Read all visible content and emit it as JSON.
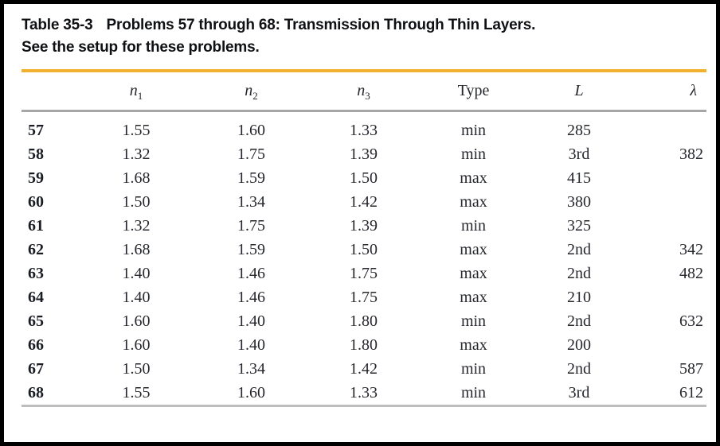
{
  "page": {
    "title_label": "Table 35-3",
    "title_text": "Problems 57 through 68: Transmission Through Thin Layers.",
    "subtitle": "See the setup for these problems."
  },
  "table": {
    "headers": [
      {
        "key": "problem",
        "base": "",
        "sub": "",
        "italic": false
      },
      {
        "key": "n1",
        "base": "n",
        "sub": "1",
        "italic": true
      },
      {
        "key": "n2",
        "base": "n",
        "sub": "2",
        "italic": true
      },
      {
        "key": "n3",
        "base": "n",
        "sub": "3",
        "italic": true
      },
      {
        "key": "type",
        "base": "Type",
        "sub": "",
        "italic": false
      },
      {
        "key": "L",
        "base": "L",
        "sub": "",
        "italic": true
      },
      {
        "key": "lambda",
        "base": "λ",
        "sub": "",
        "italic": true
      }
    ],
    "rows": [
      {
        "cells": [
          "57",
          "1.55",
          "1.60",
          "1.33",
          "min",
          "285",
          ""
        ]
      },
      {
        "cells": [
          "58",
          "1.32",
          "1.75",
          "1.39",
          "min",
          "3rd",
          "382"
        ]
      },
      {
        "cells": [
          "59",
          "1.68",
          "1.59",
          "1.50",
          "max",
          "415",
          ""
        ]
      },
      {
        "cells": [
          "60",
          "1.50",
          "1.34",
          "1.42",
          "max",
          "380",
          ""
        ]
      },
      {
        "cells": [
          "61",
          "1.32",
          "1.75",
          "1.39",
          "min",
          "325",
          ""
        ]
      },
      {
        "cells": [
          "62",
          "1.68",
          "1.59",
          "1.50",
          "max",
          "2nd",
          "342"
        ]
      },
      {
        "cells": [
          "63",
          "1.40",
          "1.46",
          "1.75",
          "max",
          "2nd",
          "482"
        ]
      },
      {
        "cells": [
          "64",
          "1.40",
          "1.46",
          "1.75",
          "max",
          "210",
          ""
        ]
      },
      {
        "cells": [
          "65",
          "1.60",
          "1.40",
          "1.80",
          "min",
          "2nd",
          "632"
        ]
      },
      {
        "cells": [
          "66",
          "1.60",
          "1.40",
          "1.80",
          "max",
          "200",
          ""
        ]
      },
      {
        "cells": [
          "67",
          "1.50",
          "1.34",
          "1.42",
          "min",
          "2nd",
          "587"
        ]
      },
      {
        "cells": [
          "68",
          "1.55",
          "1.60",
          "1.33",
          "min",
          "3rd",
          "612"
        ]
      }
    ]
  },
  "colors": {
    "accent_rule": "#F2B02F",
    "header_rule": "#A6A6A6",
    "bottom_rule": "#BDBDBD",
    "frame_border": "#000000",
    "text": "#26282E"
  }
}
